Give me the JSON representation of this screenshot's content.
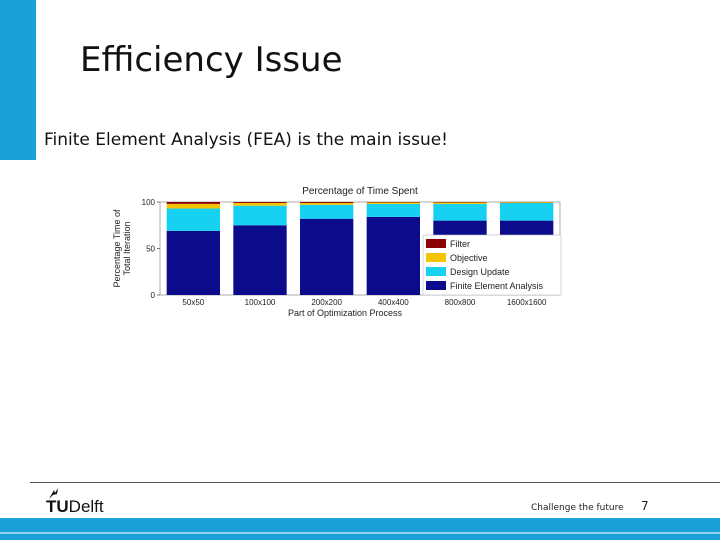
{
  "slide": {
    "title": "Efficiency Issue",
    "bullet": "Finite Element Analysis (FEA) is the main issue!"
  },
  "footer": {
    "logo_bold": "TU",
    "logo_regular": "Delft",
    "tagline": "Challenge the future",
    "page_number": "7"
  },
  "colors": {
    "accent": "#1ca0d8",
    "fea": "#0b0b8c",
    "design_update": "#16d2f0",
    "objective": "#f5c400",
    "filter": "#8b0000"
  },
  "chart_data": {
    "type": "bar",
    "stacked": true,
    "title": "Percentage of Time Spent",
    "xlabel": "Part of Optimization Process",
    "ylabel": "Percentage Time of Total Iteration",
    "ylabel_lines": [
      "Percentage Time of",
      "Total Iteration"
    ],
    "ylim": [
      0,
      100
    ],
    "yticks": [
      0,
      50,
      100
    ],
    "categories": [
      "50x50",
      "100x100",
      "200x200",
      "400x400",
      "800x800",
      "1600x1600"
    ],
    "series": [
      {
        "name": "Finite Element Analysis",
        "color": "#0b0b8c",
        "values": [
          69,
          75,
          82,
          84,
          80,
          80
        ]
      },
      {
        "name": "Design Update",
        "color": "#16d2f0",
        "values": [
          24,
          21,
          15,
          14,
          18,
          19
        ]
      },
      {
        "name": "Objective",
        "color": "#f5c400",
        "values": [
          5,
          3,
          2,
          1.5,
          1.5,
          0.8
        ]
      },
      {
        "name": "Filter",
        "color": "#8b0000",
        "values": [
          2,
          1,
          1,
          0.5,
          0.5,
          0.2
        ]
      }
    ],
    "legend_order": [
      "Filter",
      "Objective",
      "Design Update",
      "Finite Element Analysis"
    ],
    "legend_position": "inside-right",
    "grid": false
  }
}
